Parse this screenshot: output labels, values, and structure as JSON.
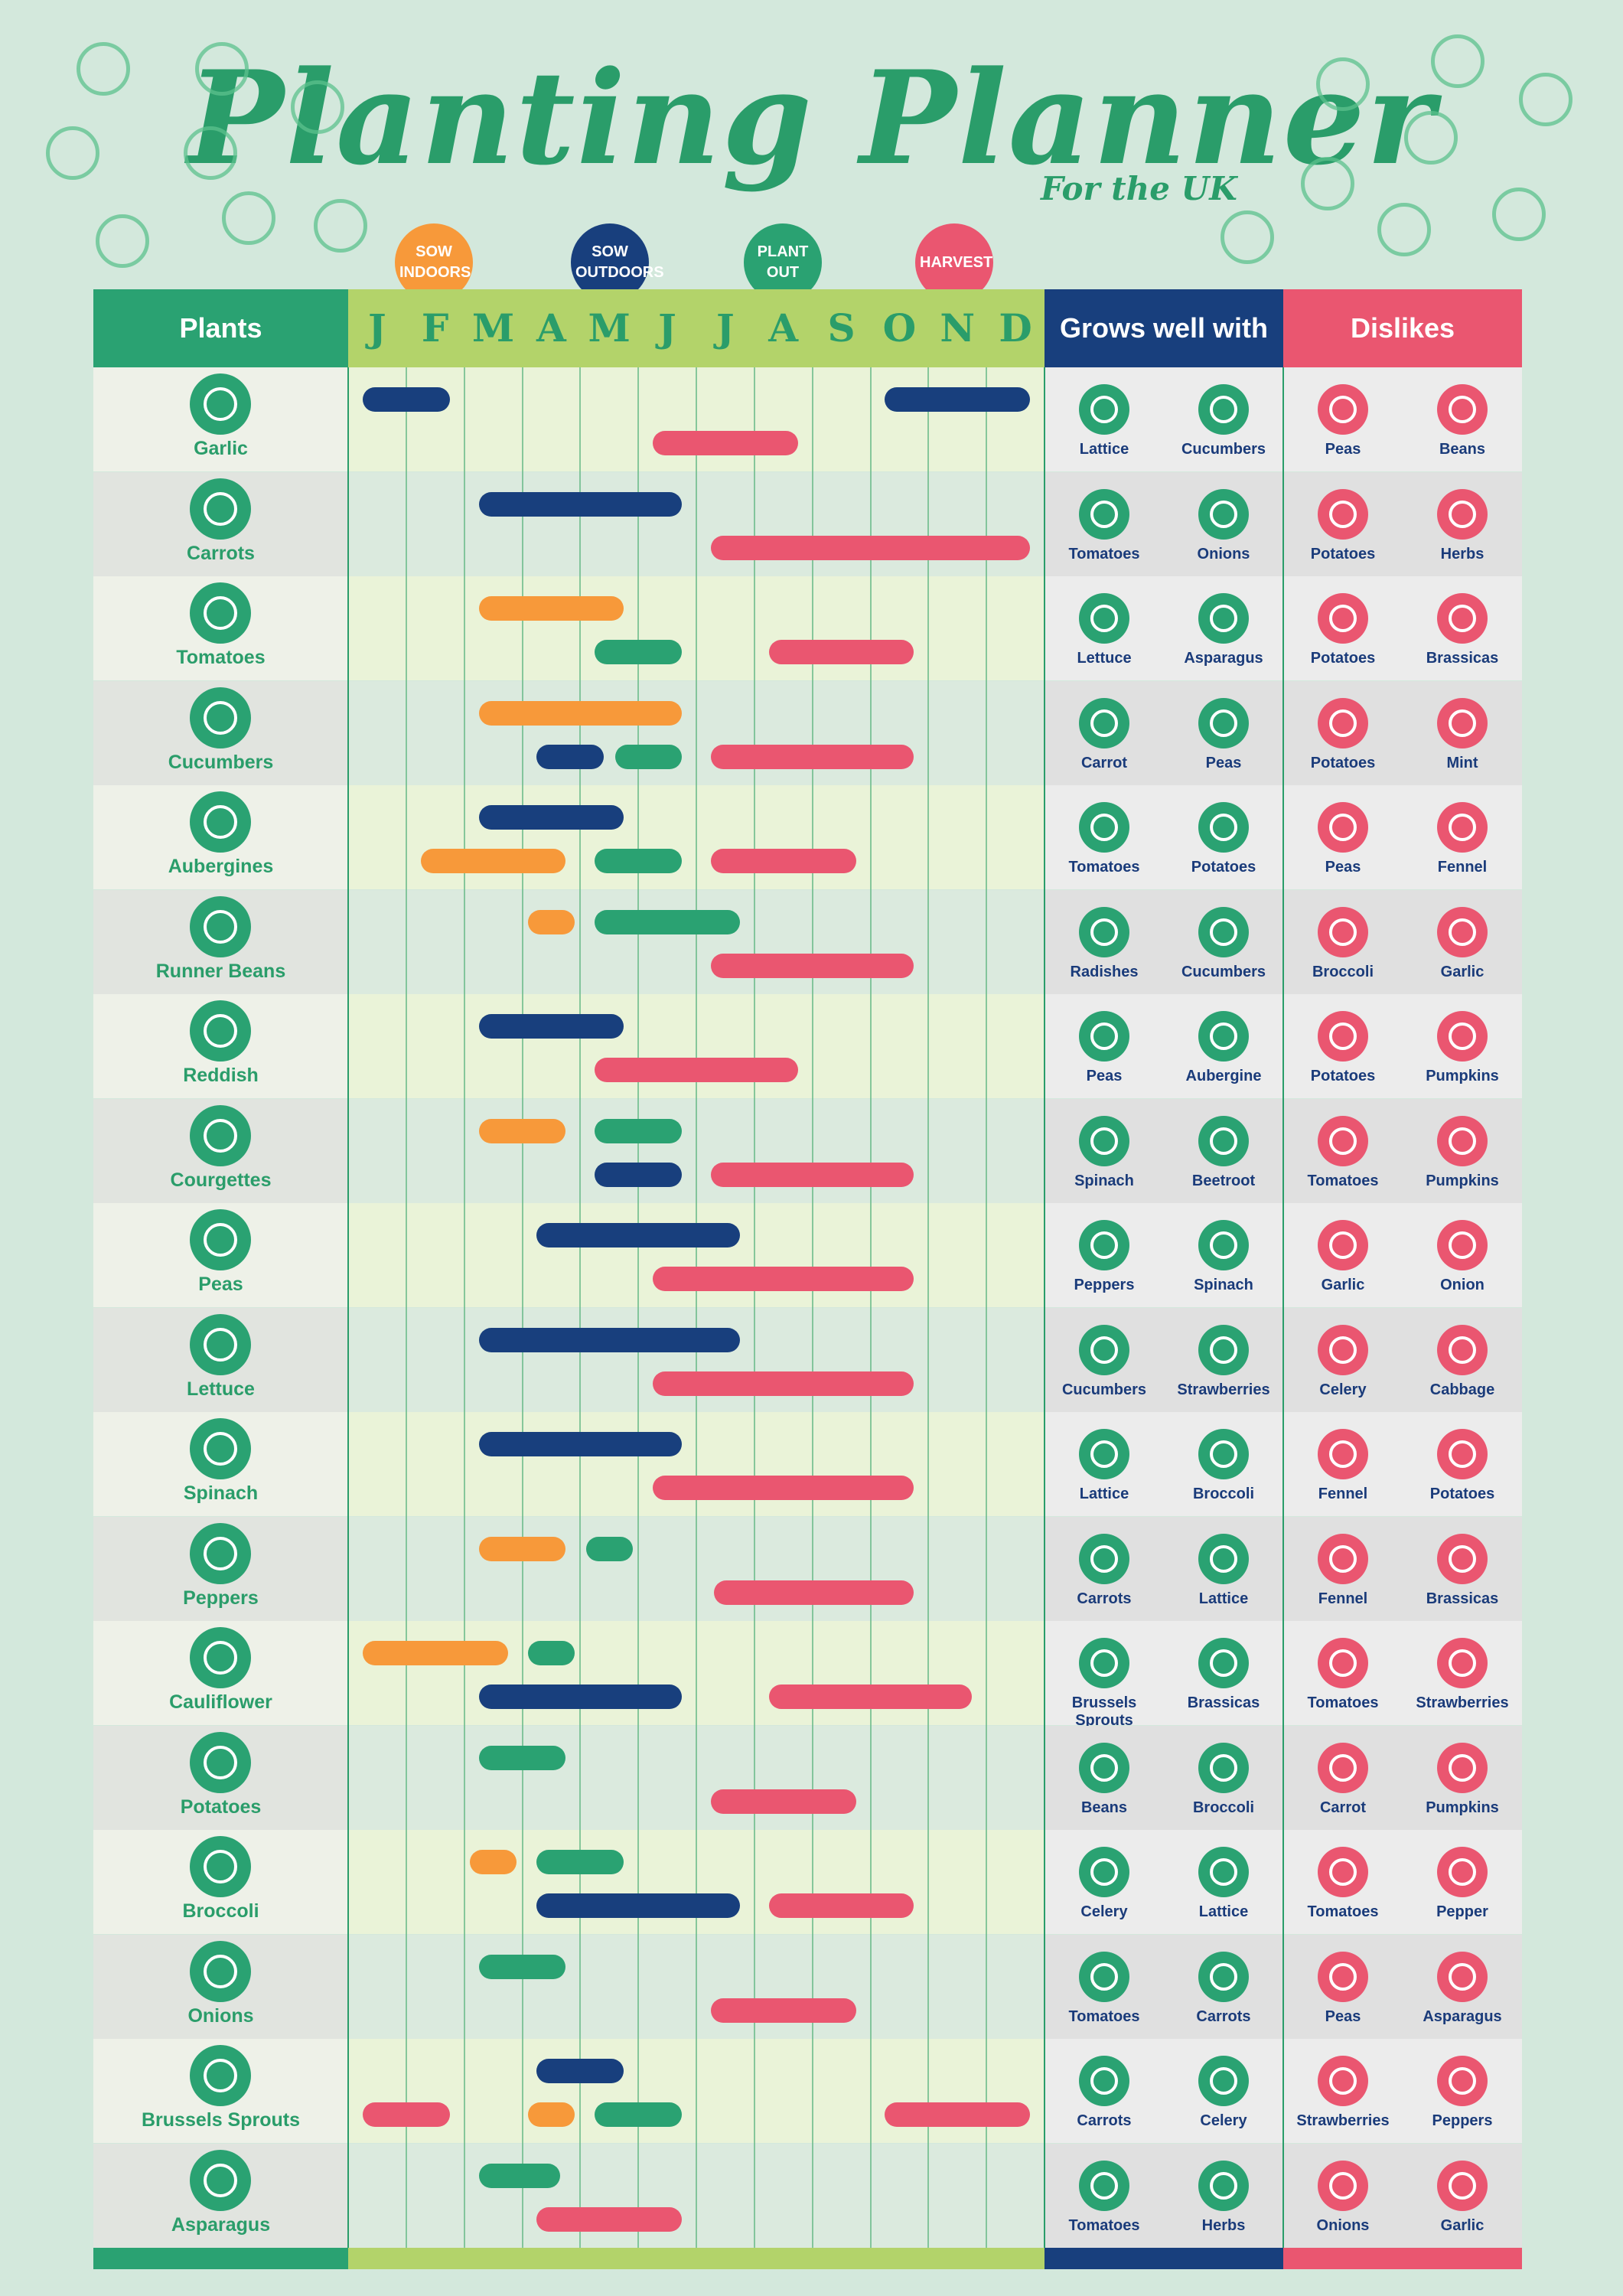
{
  "header": {
    "title": "Planting Planner",
    "subtitle": "For the UK"
  },
  "legend": [
    {
      "label": "SOW INDOORS",
      "color": "#f7993a"
    },
    {
      "label": "SOW OUTDOORS",
      "color": "#183f7d"
    },
    {
      "label": "PLANT OUT",
      "color": "#2aa272"
    },
    {
      "label": "HARVEST",
      "color": "#ea5670"
    }
  ],
  "columns": {
    "plants": "Plants",
    "grows_well_with": "Grows well with",
    "dislikes": "Dislikes"
  },
  "months": [
    "J",
    "F",
    "M",
    "A",
    "M",
    "J",
    "J",
    "A",
    "S",
    "O",
    "N",
    "D"
  ],
  "colors": {
    "green": "#2aa272",
    "navy": "#183f7d",
    "pink": "#ea5670",
    "orange": "#f7993a",
    "lime": "#b3d36a",
    "row_light": "#eef1e8",
    "row_dark": "#e1e4df",
    "chart_light": "#eaf3d8",
    "chart_dark": "#dbeade",
    "side_light": "#ececec",
    "side_dark": "#e0e0e0"
  },
  "plants": [
    {
      "name": "Garlic",
      "icon": "garlic-icon",
      "grows": [
        "Lattice",
        "Cucumbers"
      ],
      "dislikes": [
        "Peas",
        "Beans"
      ],
      "bars": [
        {
          "start": 0.25,
          "end": 1.75,
          "lane": 0,
          "type": "sow_outdoors"
        },
        {
          "start": 9.25,
          "end": 11.75,
          "lane": 0,
          "type": "sow_outdoors"
        },
        {
          "start": 5.25,
          "end": 7.75,
          "lane": 1,
          "type": "harvest"
        }
      ]
    },
    {
      "name": "Carrots",
      "icon": "carrot-icon",
      "grows": [
        "Tomatoes",
        "Onions"
      ],
      "dislikes": [
        "Potatoes",
        "Herbs"
      ],
      "bars": [
        {
          "start": 2.25,
          "end": 5.75,
          "lane": 0,
          "type": "sow_outdoors"
        },
        {
          "start": 6.25,
          "end": 11.75,
          "lane": 1,
          "type": "harvest"
        }
      ]
    },
    {
      "name": "Tomatoes",
      "icon": "tomato-icon",
      "grows": [
        "Lettuce",
        "Asparagus"
      ],
      "dislikes": [
        "Potatoes",
        "Brassicas"
      ],
      "bars": [
        {
          "start": 2.25,
          "end": 4.75,
          "lane": 0,
          "type": "sow_indoors"
        },
        {
          "start": 4.25,
          "end": 5.75,
          "lane": 1,
          "type": "plant_out"
        },
        {
          "start": 7.25,
          "end": 9.75,
          "lane": 1,
          "type": "harvest"
        }
      ]
    },
    {
      "name": "Cucumbers",
      "icon": "cucumber-icon",
      "grows": [
        "Carrot",
        "Peas"
      ],
      "dislikes": [
        "Potatoes",
        "Mint"
      ],
      "bars": [
        {
          "start": 2.25,
          "end": 5.75,
          "lane": 0,
          "type": "sow_indoors"
        },
        {
          "start": 3.25,
          "end": 4.4,
          "lane": 1,
          "type": "sow_outdoors"
        },
        {
          "start": 4.6,
          "end": 5.75,
          "lane": 1,
          "type": "plant_out"
        },
        {
          "start": 6.25,
          "end": 9.75,
          "lane": 1,
          "type": "harvest"
        }
      ]
    },
    {
      "name": "Aubergines",
      "icon": "aubergine-icon",
      "grows": [
        "Tomatoes",
        "Potatoes"
      ],
      "dislikes": [
        "Peas",
        "Fennel"
      ],
      "bars": [
        {
          "start": 2.25,
          "end": 4.75,
          "lane": 0,
          "type": "sow_outdoors"
        },
        {
          "start": 1.25,
          "end": 3.75,
          "lane": 1,
          "type": "sow_indoors"
        },
        {
          "start": 4.25,
          "end": 5.75,
          "lane": 1,
          "type": "plant_out"
        },
        {
          "start": 6.25,
          "end": 8.75,
          "lane": 1,
          "type": "harvest"
        }
      ]
    },
    {
      "name": "Runner Beans",
      "icon": "bean-icon",
      "grows": [
        "Radishes",
        "Cucumbers"
      ],
      "dislikes": [
        "Broccoli",
        "Garlic"
      ],
      "bars": [
        {
          "start": 3.1,
          "end": 3.9,
          "lane": 0,
          "type": "sow_indoors"
        },
        {
          "start": 4.25,
          "end": 6.75,
          "lane": 0,
          "type": "plant_out"
        },
        {
          "start": 6.25,
          "end": 9.75,
          "lane": 1,
          "type": "harvest"
        }
      ]
    },
    {
      "name": "Reddish",
      "icon": "radish-icon",
      "grows": [
        "Peas",
        "Aubergine"
      ],
      "dislikes": [
        "Potatoes",
        "Pumpkins"
      ],
      "bars": [
        {
          "start": 2.25,
          "end": 4.75,
          "lane": 0,
          "type": "sow_outdoors"
        },
        {
          "start": 4.25,
          "end": 7.75,
          "lane": 1,
          "type": "harvest"
        }
      ]
    },
    {
      "name": "Courgettes",
      "icon": "courgette-icon",
      "grows": [
        "Spinach",
        "Beetroot"
      ],
      "dislikes": [
        "Tomatoes",
        "Pumpkins"
      ],
      "bars": [
        {
          "start": 2.25,
          "end": 3.75,
          "lane": 0,
          "type": "sow_indoors"
        },
        {
          "start": 4.25,
          "end": 5.75,
          "lane": 0,
          "type": "plant_out"
        },
        {
          "start": 4.25,
          "end": 5.75,
          "lane": 1,
          "type": "sow_outdoors"
        },
        {
          "start": 6.25,
          "end": 9.75,
          "lane": 1,
          "type": "harvest"
        }
      ]
    },
    {
      "name": "Peas",
      "icon": "peas-icon",
      "grows": [
        "Peppers",
        "Spinach"
      ],
      "dislikes": [
        "Garlic",
        "Onion"
      ],
      "bars": [
        {
          "start": 3.25,
          "end": 6.75,
          "lane": 0,
          "type": "sow_outdoors"
        },
        {
          "start": 5.25,
          "end": 9.75,
          "lane": 1,
          "type": "harvest"
        }
      ]
    },
    {
      "name": "Lettuce",
      "icon": "lettuce-icon",
      "grows": [
        "Cucumbers",
        "Strawberries"
      ],
      "dislikes": [
        "Celery",
        "Cabbage"
      ],
      "bars": [
        {
          "start": 2.25,
          "end": 6.75,
          "lane": 0,
          "type": "sow_outdoors"
        },
        {
          "start": 5.25,
          "end": 9.75,
          "lane": 1,
          "type": "harvest"
        }
      ]
    },
    {
      "name": "Spinach",
      "icon": "spinach-icon",
      "grows": [
        "Lattice",
        "Broccoli"
      ],
      "dislikes": [
        "Fennel",
        "Potatoes"
      ],
      "bars": [
        {
          "start": 2.25,
          "end": 5.75,
          "lane": 0,
          "type": "sow_outdoors"
        },
        {
          "start": 5.25,
          "end": 9.75,
          "lane": 1,
          "type": "harvest"
        }
      ]
    },
    {
      "name": "Peppers",
      "icon": "pepper-icon",
      "grows": [
        "Carrots",
        "Lattice"
      ],
      "dislikes": [
        "Fennel",
        "Brassicas"
      ],
      "bars": [
        {
          "start": 2.25,
          "end": 3.75,
          "lane": 0,
          "type": "sow_indoors"
        },
        {
          "start": 4.1,
          "end": 4.9,
          "lane": 0,
          "type": "plant_out"
        },
        {
          "start": 6.3,
          "end": 9.75,
          "lane": 1,
          "type": "harvest"
        }
      ]
    },
    {
      "name": "Cauliflower",
      "icon": "cauliflower-icon",
      "grows": [
        "Brussels Sprouts",
        "Brassicas"
      ],
      "dislikes": [
        "Tomatoes",
        "Strawberries"
      ],
      "bars": [
        {
          "start": 0.25,
          "end": 2.75,
          "lane": 0,
          "type": "sow_indoors"
        },
        {
          "start": 3.1,
          "end": 3.9,
          "lane": 0,
          "type": "plant_out"
        },
        {
          "start": 2.25,
          "end": 5.75,
          "lane": 1,
          "type": "sow_outdoors"
        },
        {
          "start": 7.25,
          "end": 10.75,
          "lane": 1,
          "type": "harvest"
        }
      ]
    },
    {
      "name": "Potatoes",
      "icon": "potato-icon",
      "grows": [
        "Beans",
        "Broccoli"
      ],
      "dislikes": [
        "Carrot",
        "Pumpkins"
      ],
      "bars": [
        {
          "start": 2.25,
          "end": 3.75,
          "lane": 0,
          "type": "plant_out"
        },
        {
          "start": 6.25,
          "end": 8.75,
          "lane": 1,
          "type": "harvest"
        }
      ]
    },
    {
      "name": "Broccoli",
      "icon": "broccoli-icon",
      "grows": [
        "Celery",
        "Lattice"
      ],
      "dislikes": [
        "Tomatoes",
        "Pepper"
      ],
      "bars": [
        {
          "start": 2.1,
          "end": 2.9,
          "lane": 0,
          "type": "sow_indoors"
        },
        {
          "start": 3.25,
          "end": 4.75,
          "lane": 0,
          "type": "plant_out"
        },
        {
          "start": 3.25,
          "end": 6.75,
          "lane": 1,
          "type": "sow_outdoors"
        },
        {
          "start": 7.25,
          "end": 9.75,
          "lane": 1,
          "type": "harvest"
        }
      ]
    },
    {
      "name": "Onions",
      "icon": "onion-icon",
      "grows": [
        "Tomatoes",
        "Carrots"
      ],
      "dislikes": [
        "Peas",
        "Asparagus"
      ],
      "bars": [
        {
          "start": 2.25,
          "end": 3.75,
          "lane": 0,
          "type": "plant_out"
        },
        {
          "start": 6.25,
          "end": 8.75,
          "lane": 1,
          "type": "harvest"
        }
      ]
    },
    {
      "name": "Brussels Sprouts",
      "icon": "brussels-sprouts-icon",
      "grows": [
        "Carrots",
        "Celery"
      ],
      "dislikes": [
        "Strawberries",
        "Peppers"
      ],
      "bars": [
        {
          "start": 3.25,
          "end": 4.75,
          "lane": 0,
          "type": "sow_outdoors"
        },
        {
          "start": 0.25,
          "end": 1.75,
          "lane": 1,
          "type": "harvest"
        },
        {
          "start": 3.1,
          "end": 3.9,
          "lane": 1,
          "type": "sow_indoors"
        },
        {
          "start": 4.25,
          "end": 5.75,
          "lane": 1,
          "type": "plant_out"
        },
        {
          "start": 9.25,
          "end": 11.75,
          "lane": 1,
          "type": "harvest"
        }
      ]
    },
    {
      "name": "Asparagus",
      "icon": "asparagus-icon",
      "grows": [
        "Tomatoes",
        "Herbs"
      ],
      "dislikes": [
        "Onions",
        "Garlic"
      ],
      "bars": [
        {
          "start": 2.25,
          "end": 3.65,
          "lane": 0,
          "type": "plant_out"
        },
        {
          "start": 3.25,
          "end": 5.75,
          "lane": 1,
          "type": "harvest"
        }
      ]
    }
  ]
}
